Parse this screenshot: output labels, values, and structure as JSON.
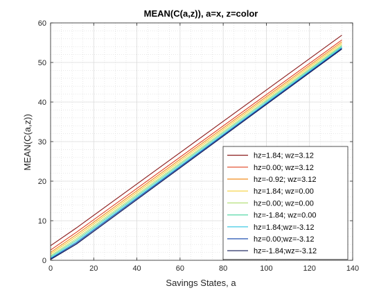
{
  "chart_data": {
    "type": "line",
    "title": "MEAN(C(a,z)), a=x, z=color",
    "xlabel": "Savings States, a",
    "ylabel": "MEAN(C(a,z))",
    "xlim": [
      0,
      140
    ],
    "ylim": [
      0,
      60
    ],
    "xticks": [
      0,
      20,
      40,
      60,
      80,
      100,
      120,
      140
    ],
    "yticks": [
      0,
      10,
      20,
      30,
      40,
      50,
      60
    ],
    "grid": "on",
    "minor_grid": "on",
    "legend_position": "bottom-right",
    "series": [
      {
        "name": "hz=1.84; wz=3.12",
        "color": "#8b1a1a",
        "x": [
          0,
          12,
          135
        ],
        "y": [
          3.7,
          8.2,
          56.9
        ]
      },
      {
        "name": "hz=0.00; wz=3.12",
        "color": "#e0401f",
        "x": [
          0,
          12,
          135
        ],
        "y": [
          2.6,
          7.1,
          55.7
        ]
      },
      {
        "name": "hz=-0.92; wz=3.12",
        "color": "#f28c1c",
        "x": [
          0,
          12,
          135
        ],
        "y": [
          2.0,
          6.5,
          55.2
        ]
      },
      {
        "name": "hz=1.84; wz=0.00",
        "color": "#f5d13a",
        "x": [
          0,
          12,
          135
        ],
        "y": [
          1.6,
          6.0,
          54.8
        ]
      },
      {
        "name": "hz=0.00; wz=0.00",
        "color": "#b6e07a",
        "x": [
          0,
          12,
          135
        ],
        "y": [
          1.2,
          5.5,
          54.4
        ]
      },
      {
        "name": "hz=-1.84; wz=0.00",
        "color": "#59d9a8",
        "x": [
          0,
          12,
          135
        ],
        "y": [
          0.9,
          5.1,
          54.1
        ]
      },
      {
        "name": "hz=1.84;wz=-3.12",
        "color": "#2bc4e0",
        "x": [
          0,
          12,
          135
        ],
        "y": [
          0.6,
          4.7,
          53.8
        ]
      },
      {
        "name": "hz=0.00;wz=-3.12",
        "color": "#1f4fb0",
        "x": [
          0,
          12,
          135
        ],
        "y": [
          0.4,
          4.4,
          53.6
        ]
      },
      {
        "name": "hz=-1.84;wz=-3.12",
        "color": "#101a55",
        "x": [
          0,
          12,
          135
        ],
        "y": [
          0.2,
          4.1,
          53.4
        ]
      }
    ]
  }
}
